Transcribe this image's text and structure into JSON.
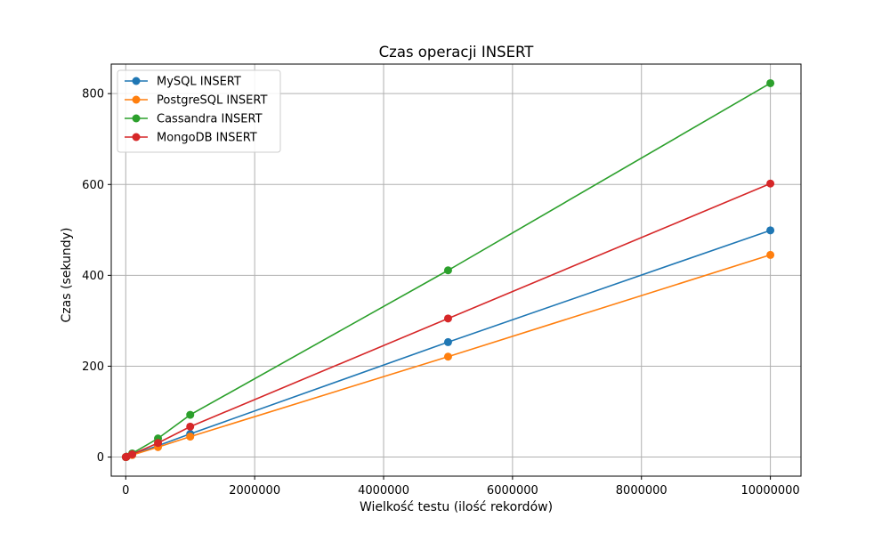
{
  "chart_data": {
    "type": "line",
    "title": "Czas operacji INSERT",
    "xlabel": "Wielkość testu (ilość rekordów)",
    "ylabel": "Czas (sekundy)",
    "x": [
      1000,
      10000,
      100000,
      500000,
      1000000,
      5000000,
      10000000
    ],
    "xlim": [
      -225000,
      10475000
    ],
    "ylim": [
      -42,
      865
    ],
    "xticks": [
      0,
      2000000,
      4000000,
      6000000,
      8000000,
      10000000
    ],
    "xtick_labels": [
      "0",
      "2000000",
      "4000000",
      "6000000",
      "8000000",
      "10000000"
    ],
    "yticks": [
      0,
      200,
      400,
      600,
      800
    ],
    "ytick_labels": [
      "0",
      "200",
      "400",
      "600",
      "800"
    ],
    "grid": true,
    "legend_position": "top-left",
    "series": [
      {
        "name": "MySQL INSERT",
        "color": "#1f77b4",
        "values": [
          0.05,
          0.5,
          5,
          25,
          51,
          253,
          499
        ]
      },
      {
        "name": "PostgreSQL INSERT",
        "color": "#ff7f0e",
        "values": [
          0.04,
          0.45,
          4.5,
          22,
          45,
          221,
          445
        ]
      },
      {
        "name": "Cassandra INSERT",
        "color": "#2ca02c",
        "values": [
          0.08,
          0.8,
          8,
          41,
          93,
          411,
          823
        ]
      },
      {
        "name": "MongoDB INSERT",
        "color": "#d62728",
        "values": [
          0.06,
          0.6,
          6,
          31,
          67,
          305,
          602
        ]
      }
    ]
  }
}
